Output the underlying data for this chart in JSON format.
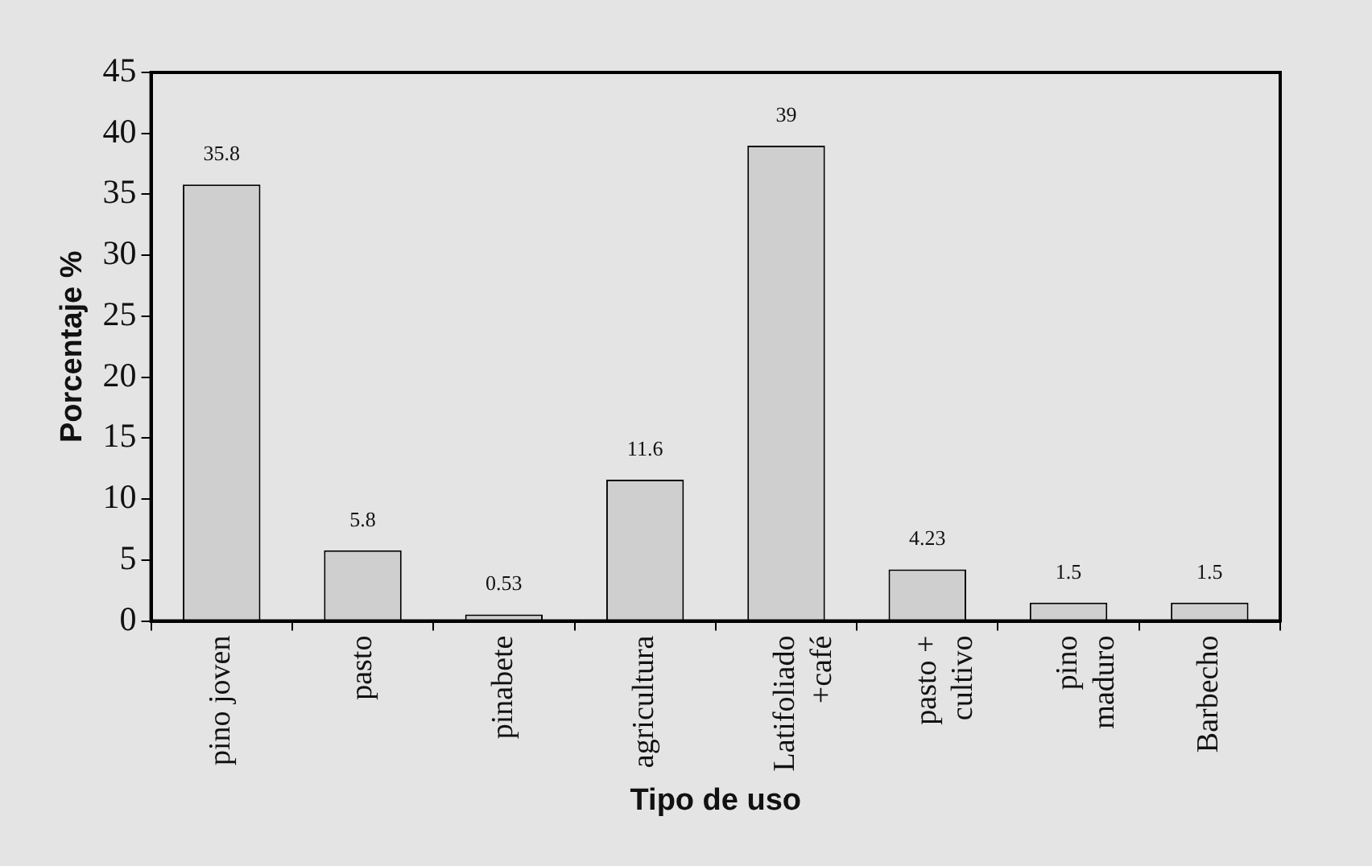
{
  "chart_data": {
    "type": "bar",
    "xlabel": "Tipo de uso",
    "ylabel": "Porcentaje %",
    "categories": [
      "pino joven",
      "pasto",
      "pinabete",
      "agricultura",
      "Latifoliado\n+café",
      "pasto +\ncultivo",
      "pino\nmaduro",
      "Barbecho"
    ],
    "values": [
      35.8,
      5.8,
      0.53,
      11.6,
      39,
      4.23,
      1.5,
      1.5
    ],
    "color": "#cfcfcf",
    "ylim": [
      0,
      45
    ],
    "yticks": [
      0,
      5,
      10,
      15,
      20,
      25,
      30,
      35,
      40,
      45
    ],
    "grid": false,
    "legend": false,
    "data_labels": true
  }
}
